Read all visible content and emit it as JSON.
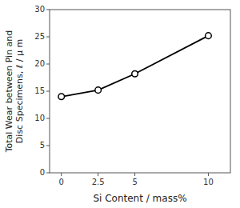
{
  "chart_data": {
    "type": "line",
    "x": [
      0,
      2.5,
      5,
      10
    ],
    "values": [
      14.0,
      15.2,
      18.2,
      25.2
    ],
    "xlabel": "Si Content / mass%",
    "ylabel": [
      "Total Wear between Pin and",
      "Disc Specimens, ℓ / μ m"
    ],
    "xlim": [
      -0.8,
      11.5
    ],
    "ylim": [
      0,
      30
    ],
    "xticks": [
      0,
      2.5,
      5,
      10
    ],
    "yticks": [
      0,
      5,
      10,
      15,
      20,
      25,
      30
    ],
    "color": "#000000",
    "marker": "circle",
    "grid": false
  }
}
